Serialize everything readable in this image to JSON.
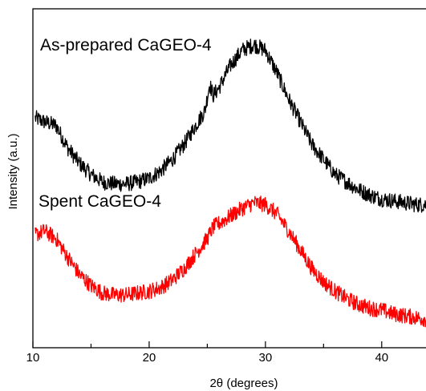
{
  "chart_data": {
    "type": "line",
    "xlabel": "2θ (degrees)",
    "ylabel": "Intensity (a.u.)",
    "xlim": [
      10,
      44.5
    ],
    "x_ticks": [
      10,
      20,
      30,
      40
    ],
    "y_ticks": [],
    "grid": false,
    "legend": "none",
    "series": [
      {
        "name": "As-prepared CaGEO-4",
        "color": "#000000",
        "x": [
          10.2,
          11.0,
          12.0,
          13.0,
          14.0,
          15.0,
          16.0,
          17.0,
          18.0,
          19.0,
          20.0,
          21.0,
          22.0,
          23.0,
          24.0,
          24.8,
          25.2,
          25.5,
          26.0,
          27.0,
          28.0,
          29.0,
          30.0,
          31.0,
          32.0,
          33.0,
          34.0,
          35.0,
          36.0,
          37.0,
          38.0,
          39.0,
          40.0,
          41.0,
          42.0,
          43.0,
          44.0,
          44.5
        ],
        "y": [
          6.1,
          6.0,
          5.9,
          5.3,
          4.9,
          4.6,
          4.4,
          4.35,
          4.35,
          4.4,
          4.5,
          4.7,
          5.0,
          5.4,
          5.9,
          6.3,
          7.0,
          6.7,
          6.9,
          7.5,
          7.9,
          8.05,
          7.9,
          7.3,
          6.6,
          6.0,
          5.4,
          5.0,
          4.6,
          4.4,
          4.2,
          4.05,
          3.95,
          3.9,
          3.85,
          3.8,
          3.8,
          3.8
        ]
      },
      {
        "name": "Spent CaGEO-4",
        "color": "#ff0000",
        "x": [
          10.2,
          11.0,
          12.0,
          13.0,
          14.0,
          15.0,
          16.0,
          17.0,
          18.0,
          19.0,
          20.0,
          21.0,
          22.0,
          23.0,
          24.0,
          25.0,
          25.5,
          26.0,
          27.0,
          28.0,
          29.0,
          30.0,
          31.0,
          32.0,
          33.0,
          34.0,
          35.0,
          36.0,
          37.0,
          38.0,
          39.0,
          40.0,
          41.0,
          42.0,
          43.0,
          44.0,
          44.5
        ],
        "y": [
          3.0,
          3.1,
          2.9,
          2.4,
          1.95,
          1.65,
          1.45,
          1.4,
          1.4,
          1.45,
          1.5,
          1.6,
          1.8,
          2.1,
          2.5,
          2.9,
          3.2,
          3.3,
          3.5,
          3.7,
          3.85,
          3.8,
          3.55,
          3.1,
          2.6,
          2.1,
          1.75,
          1.5,
          1.3,
          1.15,
          1.05,
          1.0,
          0.9,
          0.85,
          0.8,
          0.75,
          0.7
        ]
      }
    ]
  }
}
